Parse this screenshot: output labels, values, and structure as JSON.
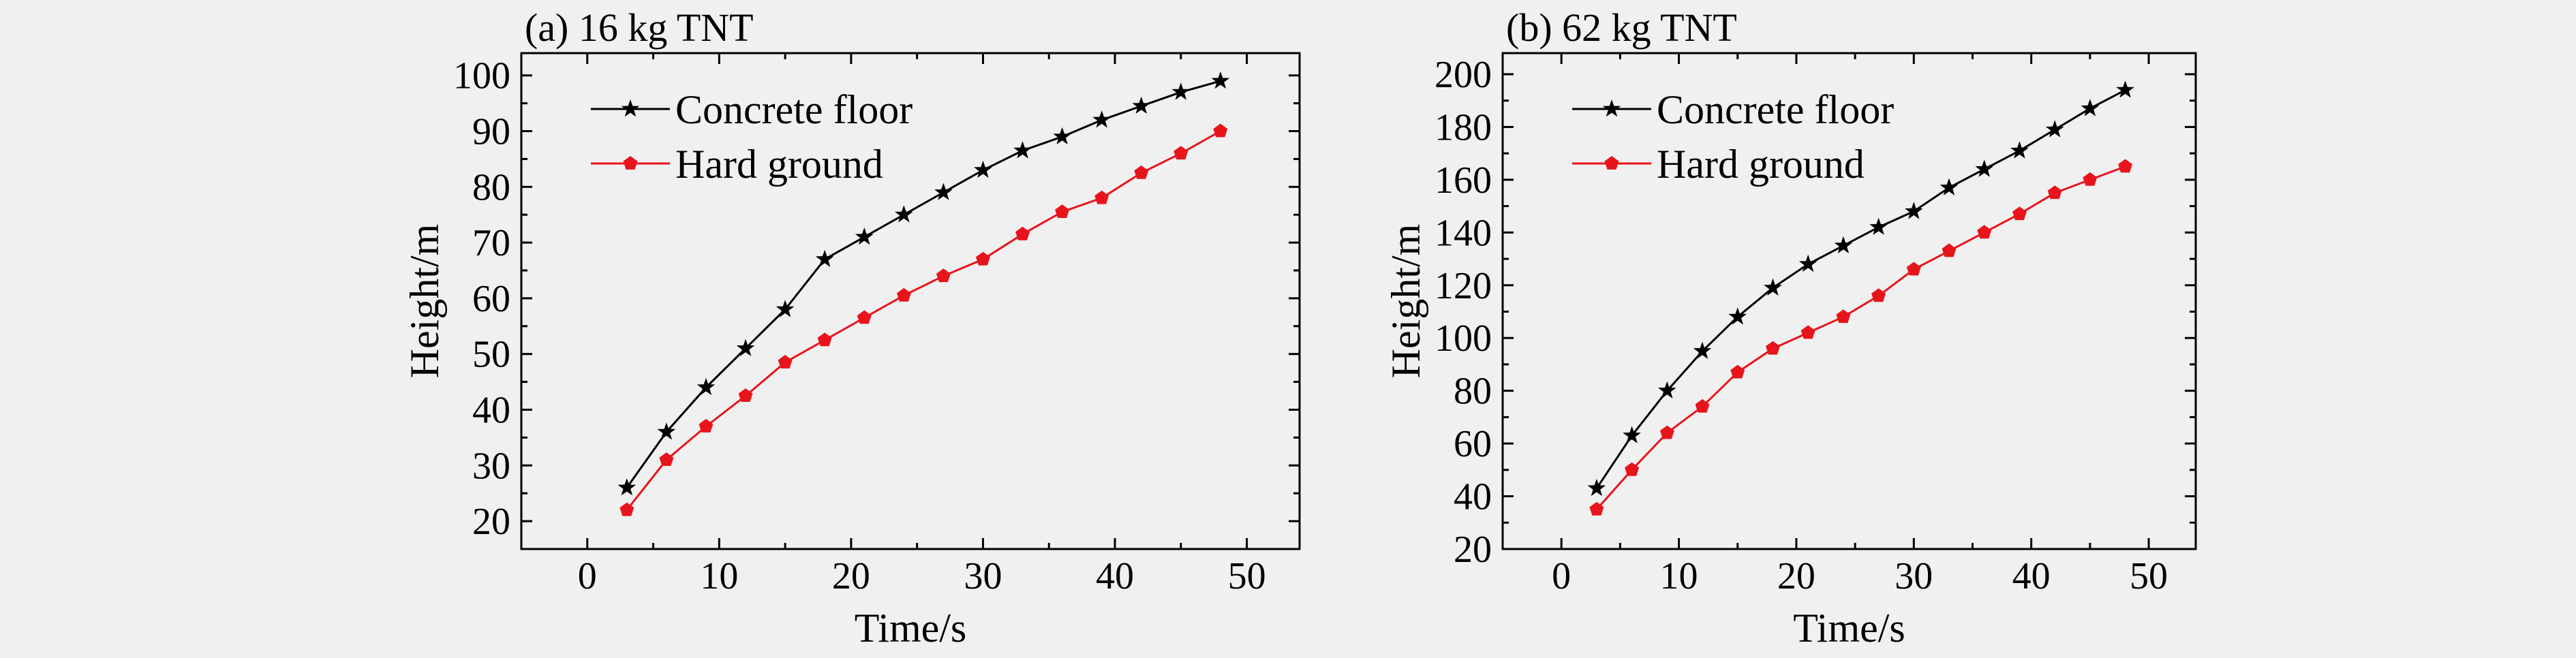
{
  "colors": {
    "background": "#f0f0f0",
    "concrete": "#000000",
    "hard": "#e8141b"
  },
  "chart_data": [
    {
      "type": "line",
      "title": "(a) 16 kg TNT",
      "xlabel": "Time/s",
      "ylabel": "Height/m",
      "xlim": [
        -5,
        54
      ],
      "ylim": [
        15,
        104
      ],
      "xticks": [
        0,
        10,
        20,
        30,
        40,
        50
      ],
      "yticks": [
        20,
        30,
        40,
        50,
        60,
        70,
        80,
        90,
        100
      ],
      "legend_position": "top-left",
      "series": [
        {
          "name": "Concrete floor",
          "marker": "star",
          "color": "#000000",
          "x": [
            3,
            6,
            9,
            12,
            15,
            18,
            21,
            24,
            27,
            30,
            33,
            36,
            39,
            42,
            45,
            48
          ],
          "values": [
            26,
            36,
            44,
            51,
            58,
            67,
            71,
            75,
            79,
            83,
            86.5,
            89,
            92,
            94.5,
            97,
            99
          ]
        },
        {
          "name": "Hard ground",
          "marker": "pentagon",
          "color": "#e8141b",
          "x": [
            3,
            6,
            9,
            12,
            15,
            18,
            21,
            24,
            27,
            30,
            33,
            36,
            39,
            42,
            45,
            48
          ],
          "values": [
            22,
            31,
            37,
            42.5,
            48.5,
            52.5,
            56.5,
            60.5,
            64,
            67,
            71.5,
            75.5,
            78,
            82.5,
            86,
            90
          ]
        }
      ]
    },
    {
      "type": "line",
      "title": "(b) 62 kg TNT",
      "xlabel": "Time/s",
      "ylabel": "Height/m",
      "xlim": [
        -5,
        54
      ],
      "ylim": [
        20,
        208
      ],
      "xticks": [
        0,
        10,
        20,
        30,
        40,
        50
      ],
      "yticks": [
        20,
        40,
        60,
        80,
        100,
        120,
        140,
        160,
        180,
        200
      ],
      "legend_position": "top-left",
      "series": [
        {
          "name": "Concrete floor",
          "marker": "star",
          "color": "#000000",
          "x": [
            3,
            6,
            9,
            12,
            15,
            18,
            21,
            24,
            27,
            30,
            33,
            36,
            39,
            42,
            45,
            48
          ],
          "values": [
            43,
            63,
            80,
            95,
            108,
            119,
            128,
            135,
            142,
            148,
            157,
            164,
            171,
            179,
            187,
            194
          ]
        },
        {
          "name": "Hard ground",
          "marker": "pentagon",
          "color": "#e8141b",
          "x": [
            3,
            6,
            9,
            12,
            15,
            18,
            21,
            24,
            27,
            30,
            33,
            36,
            39,
            42,
            45,
            48
          ],
          "values": [
            35,
            50,
            64,
            74,
            87,
            96,
            102,
            108,
            116,
            126,
            133,
            140,
            147,
            155,
            160,
            165
          ]
        }
      ]
    }
  ]
}
